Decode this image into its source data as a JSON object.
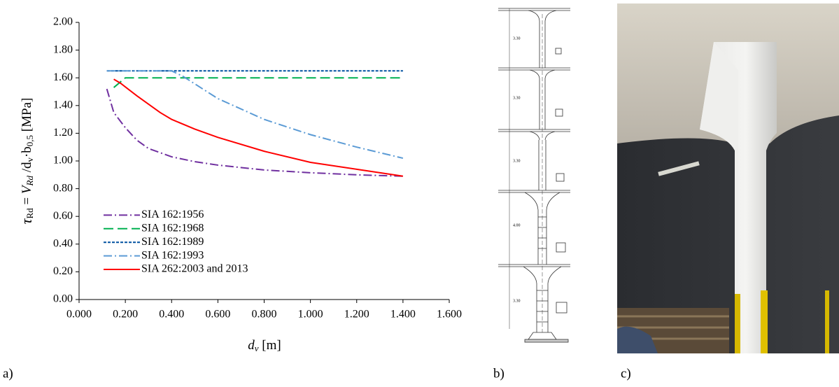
{
  "chart_data": {
    "type": "line",
    "xlabel": [
      "d",
      "v",
      " [m]"
    ],
    "ylabel": [
      "τ",
      "Rd",
      " = ",
      "V",
      "Rd",
      " /d",
      "v",
      "·b",
      "0,5",
      "  [MPa]"
    ],
    "xlim": [
      0,
      1.6
    ],
    "ylim": [
      0,
      2
    ],
    "xticks": [
      {
        "value": 0,
        "label": "0.000"
      },
      {
        "value": 0.2,
        "label": "0.200"
      },
      {
        "value": 0.4,
        "label": "0.400"
      },
      {
        "value": 0.6,
        "label": "0.600"
      },
      {
        "value": 0.8,
        "label": "0.800"
      },
      {
        "value": 1.0,
        "label": "1.000"
      },
      {
        "value": 1.2,
        "label": "1.200"
      },
      {
        "value": 1.4,
        "label": "1.400"
      },
      {
        "value": 1.6,
        "label": "1.600"
      }
    ],
    "yticks": [
      {
        "value": 0,
        "label": "0.00"
      },
      {
        "value": 0.2,
        "label": "0.20"
      },
      {
        "value": 0.4,
        "label": "0.40"
      },
      {
        "value": 0.6,
        "label": "0.60"
      },
      {
        "value": 0.8,
        "label": "0.80"
      },
      {
        "value": 1.0,
        "label": "1.00"
      },
      {
        "value": 1.2,
        "label": "1.20"
      },
      {
        "value": 1.4,
        "label": "1.40"
      },
      {
        "value": 1.6,
        "label": "1.60"
      },
      {
        "value": 1.8,
        "label": "1.80"
      },
      {
        "value": 2.0,
        "label": "2.00"
      }
    ],
    "legend": "lower left",
    "series": [
      {
        "name": "SIA 162:1956",
        "color": "#7030a0",
        "linestyle": "dashdot",
        "x": [
          0.12,
          0.15,
          0.2,
          0.25,
          0.3,
          0.4,
          0.5,
          0.6,
          0.8,
          1.0,
          1.2,
          1.4
        ],
        "values": [
          1.52,
          1.35,
          1.24,
          1.15,
          1.09,
          1.03,
          0.995,
          0.97,
          0.935,
          0.915,
          0.9,
          0.89
        ]
      },
      {
        "name": "SIA 162:1968",
        "color": "#00b050",
        "linestyle": "dashed",
        "x": [
          0.15,
          0.2,
          0.25,
          1.4
        ],
        "values": [
          1.53,
          1.6,
          1.6,
          1.6
        ]
      },
      {
        "name": "SIA 162:1989",
        "color": "#0050a0",
        "linestyle": "dotted",
        "x": [
          0.12,
          1.4
        ],
        "values": [
          1.65,
          1.65
        ]
      },
      {
        "name": "SIA 162:1993",
        "color": "#5b9bd5",
        "linestyle": "dashdot",
        "x": [
          0.12,
          0.4,
          0.45,
          0.6,
          0.8,
          1.0,
          1.2,
          1.4
        ],
        "values": [
          1.65,
          1.65,
          1.61,
          1.45,
          1.3,
          1.19,
          1.1,
          1.02
        ]
      },
      {
        "name": "SIA 262:2003 and 2013",
        "color": "#ff0000",
        "linestyle": "solid",
        "x": [
          0.15,
          0.18,
          0.25,
          0.35,
          0.4,
          0.5,
          0.6,
          0.8,
          1.0,
          1.2,
          1.4
        ],
        "values": [
          1.59,
          1.56,
          1.47,
          1.35,
          1.3,
          1.23,
          1.17,
          1.07,
          0.99,
          0.94,
          0.89
        ]
      }
    ]
  },
  "panels": [
    "a)",
    "b)",
    "c)"
  ],
  "diagram": {
    "storey_heights": [
      "3.30",
      "3.30",
      "3.30",
      "4.00",
      "3.30"
    ]
  }
}
